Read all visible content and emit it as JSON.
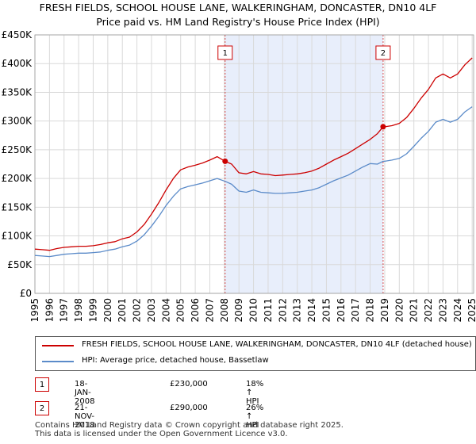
{
  "title_line1": "FRESH FIELDS, SCHOOL HOUSE LANE, WALKERINGHAM, DONCASTER, DN10 4LF",
  "title_line2": "Price paid vs. HM Land Registry's House Price Index (HPI)",
  "chart_data": {
    "type": "line",
    "title": "FRESH FIELDS, SCHOOL HOUSE LANE, WALKERINGHAM, DONCASTER, DN10 4LF — Price paid vs. HM Land Registry's House Price Index (HPI)",
    "xlabel": "",
    "ylabel": "",
    "xlim": [
      1995,
      2025.1
    ],
    "ylim": [
      0,
      450000
    ],
    "grid": true,
    "x_ticks": [
      "1995",
      "1996",
      "1997",
      "1998",
      "1999",
      "2000",
      "2001",
      "2002",
      "2003",
      "2004",
      "2005",
      "2006",
      "2007",
      "2008",
      "2009",
      "2010",
      "2011",
      "2012",
      "2013",
      "2014",
      "2015",
      "2016",
      "2017",
      "2018",
      "2019",
      "2020",
      "2021",
      "2022",
      "2023",
      "2024",
      "2025"
    ],
    "y_ticks": [
      {
        "value": 0,
        "label": "£0"
      },
      {
        "value": 50000,
        "label": "£50K"
      },
      {
        "value": 100000,
        "label": "£100K"
      },
      {
        "value": 150000,
        "label": "£150K"
      },
      {
        "value": 200000,
        "label": "£200K"
      },
      {
        "value": 250000,
        "label": "£250K"
      },
      {
        "value": 300000,
        "label": "£300K"
      },
      {
        "value": 350000,
        "label": "£350K"
      },
      {
        "value": 400000,
        "label": "£400K"
      },
      {
        "value": 450000,
        "label": "£450K"
      }
    ],
    "shaded_region": {
      "x_start": 2008.05,
      "x_end": 2018.89,
      "color": "#e8eefb"
    },
    "series": [
      {
        "name": "FRESH FIELDS, SCHOOL HOUSE LANE, WALKERINGHAM, DONCASTER, DN10 4LF (detached house)",
        "color": "#cc0000",
        "x": [
          1995,
          1995.5,
          1996,
          1996.5,
          1997,
          1997.5,
          1998,
          1998.5,
          1999,
          1999.5,
          2000,
          2000.5,
          2001,
          2001.5,
          2002,
          2002.5,
          2003,
          2003.5,
          2004,
          2004.5,
          2005,
          2005.5,
          2006,
          2006.5,
          2007,
          2007.5,
          2008.05,
          2008.5,
          2009,
          2009.5,
          2010,
          2010.5,
          2011,
          2011.5,
          2012,
          2012.5,
          2013,
          2013.5,
          2014,
          2014.5,
          2015,
          2015.5,
          2016,
          2016.5,
          2017,
          2017.5,
          2018,
          2018.5,
          2018.89,
          2019,
          2019.5,
          2020,
          2020.5,
          2021,
          2021.5,
          2022,
          2022.5,
          2023,
          2023.5,
          2024,
          2024.5,
          2025
        ],
        "y": [
          77000,
          76000,
          75000,
          78000,
          80000,
          81000,
          82000,
          82000,
          83000,
          85000,
          88000,
          90000,
          95000,
          98000,
          107000,
          120000,
          138000,
          158000,
          180000,
          200000,
          215000,
          220000,
          223000,
          227000,
          232000,
          238000,
          230000,
          225000,
          210000,
          208000,
          212000,
          208000,
          207000,
          205000,
          206000,
          207000,
          208000,
          210000,
          213000,
          218000,
          225000,
          232000,
          238000,
          244000,
          252000,
          260000,
          268000,
          278000,
          290000,
          290000,
          292000,
          296000,
          306000,
          322000,
          340000,
          355000,
          375000,
          382000,
          375000,
          382000,
          398000,
          410000
        ]
      },
      {
        "name": "HPI: Average price, detached house, Bassetlaw",
        "color": "#5b8bc9",
        "x": [
          1995,
          1995.5,
          1996,
          1996.5,
          1997,
          1997.5,
          1998,
          1998.5,
          1999,
          1999.5,
          2000,
          2000.5,
          2001,
          2001.5,
          2002,
          2002.5,
          2003,
          2003.5,
          2004,
          2004.5,
          2005,
          2005.5,
          2006,
          2006.5,
          2007,
          2007.5,
          2008.05,
          2008.5,
          2009,
          2009.5,
          2010,
          2010.5,
          2011,
          2011.5,
          2012,
          2012.5,
          2013,
          2013.5,
          2014,
          2014.5,
          2015,
          2015.5,
          2016,
          2016.5,
          2017,
          2017.5,
          2018,
          2018.5,
          2018.89,
          2019,
          2019.5,
          2020,
          2020.5,
          2021,
          2021.5,
          2022,
          2022.5,
          2023,
          2023.5,
          2024,
          2024.5,
          2025
        ],
        "y": [
          66000,
          65000,
          64000,
          66000,
          68000,
          69000,
          70000,
          70000,
          71000,
          72000,
          75000,
          77000,
          81000,
          84000,
          91000,
          102000,
          117000,
          134000,
          153000,
          169000,
          182000,
          186000,
          189000,
          192000,
          196000,
          200000,
          195000,
          190000,
          178000,
          176000,
          180000,
          176000,
          175000,
          174000,
          174000,
          175000,
          176000,
          178000,
          180000,
          184000,
          190000,
          196000,
          201000,
          206000,
          213000,
          220000,
          226000,
          225000,
          230000,
          230000,
          232000,
          235000,
          243000,
          256000,
          270000,
          282000,
          298000,
          303000,
          298000,
          303000,
          316000,
          325000
        ]
      }
    ],
    "events": [
      {
        "label": "1",
        "x": 2008.05,
        "y": 230000,
        "date": "18-JAN-2008",
        "price": "£230,000",
        "hpi": "18% ↑ HPI"
      },
      {
        "label": "2",
        "x": 2018.89,
        "y": 290000,
        "date": "21-NOV-2018",
        "price": "£290,000",
        "hpi": "26% ↑ HPI"
      }
    ]
  },
  "legend": {
    "property": "FRESH FIELDS, SCHOOL HOUSE LANE, WALKERINGHAM, DONCASTER, DN10 4LF (detached house)",
    "hpi": "HPI: Average price, detached house, Bassetlaw"
  },
  "footer_line1": "Contains HM Land Registry data © Crown copyright and database right 2025.",
  "footer_line2": "This data is licensed under the Open Government Licence v3.0."
}
